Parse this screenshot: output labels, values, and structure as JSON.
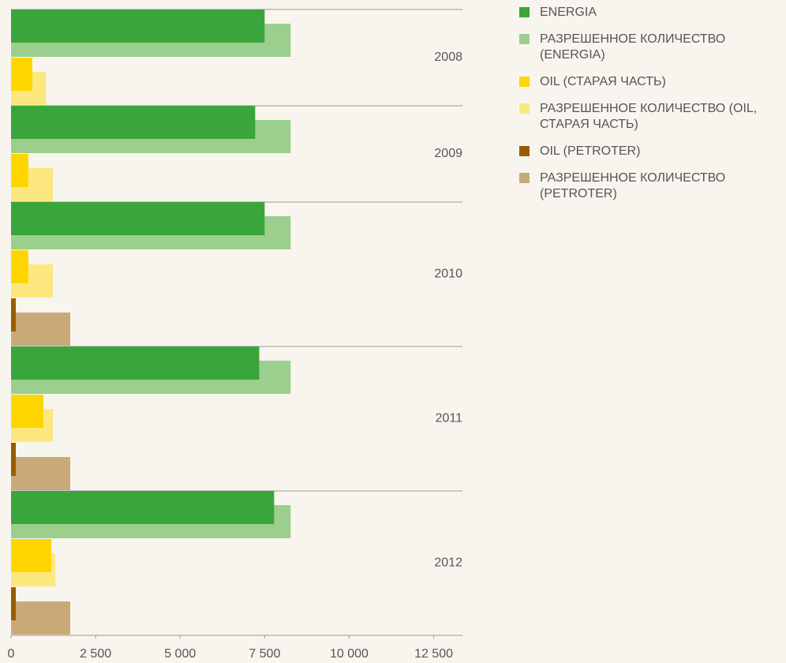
{
  "chart_data": {
    "type": "hbar",
    "categories": [
      "2008",
      "2009",
      "2010",
      "2011",
      "2012"
    ],
    "series": [
      {
        "name": "ENERGIA",
        "color": "#3aa53a",
        "values": [
          7500,
          7220,
          7500,
          7340,
          7780
        ]
      },
      {
        "name": "РАЗРЕШЕННОЕ КОЛИЧЕСТВО (ENERGIA)",
        "color": "#9ccf8e",
        "values": [
          8270,
          8270,
          8270,
          8270,
          8270
        ]
      },
      {
        "name": "OIL (СТАРАЯ ЧАСТЬ)",
        "color": "#ffd500",
        "values": [
          630,
          510,
          510,
          960,
          1190
        ]
      },
      {
        "name": "РАЗРЕШЕННОЕ КОЛИЧЕСТВО (OIL, СТАРАЯ ЧАСТЬ)",
        "color": "#fde880",
        "values": [
          1030,
          1240,
          1240,
          1240,
          1310
        ]
      },
      {
        "name": "OIL (PETROTER)",
        "color": "#9a5c00",
        "values": [
          null,
          null,
          140,
          140,
          140
        ]
      },
      {
        "name": "РАЗРЕШЕННОЕ КОЛИЧЕСТВО (PETROTER)",
        "color": "#c8aa78",
        "values": [
          null,
          null,
          1750,
          1750,
          1750
        ]
      }
    ],
    "xlim": [
      0,
      13350
    ],
    "xticks": [
      0,
      {
        "value": 2500,
        "label": "2 500"
      },
      {
        "value": 5000,
        "label": "5 000"
      },
      {
        "value": 7500,
        "label": "7 500"
      },
      {
        "value": 10000,
        "label": "10 000"
      },
      {
        "value": 12500,
        "label": "12 500"
      }
    ]
  }
}
